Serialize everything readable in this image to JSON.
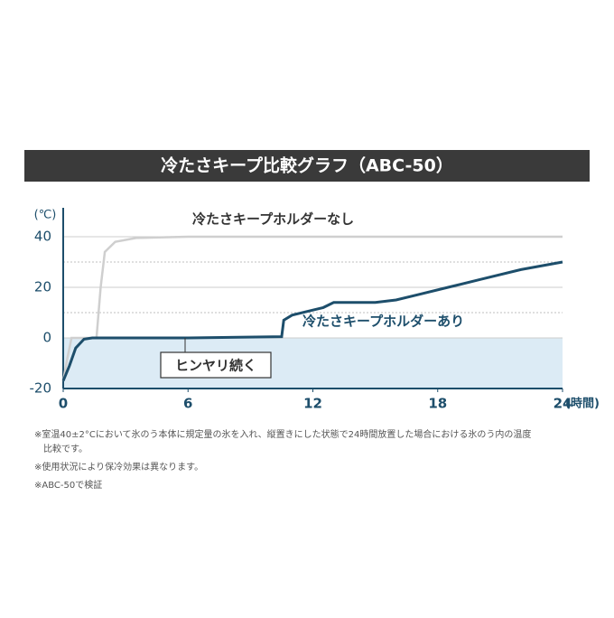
{
  "chart_data": {
    "type": "line",
    "title": "冷たさキープ比較グラフ（ABC-50）",
    "y_label": "(℃)",
    "x_label": "(時間)",
    "xlim": [
      0,
      24
    ],
    "xticks": [
      0,
      6,
      12,
      18,
      24
    ],
    "ylim": [
      -20,
      50
    ],
    "yticks": [
      40,
      20,
      0,
      -20
    ],
    "minor_gridlines": [
      30,
      10
    ],
    "grid": true,
    "series": [
      {
        "name": "冷たさキープホルダーなし",
        "color": "#cfcfcf",
        "x": [
          0,
          0.2,
          0.4,
          1.6,
          1.8,
          2.0,
          2.5,
          3.5,
          6,
          12,
          18,
          24
        ],
        "values": [
          -17,
          -8,
          0,
          0,
          20,
          34,
          38,
          39.5,
          40,
          40,
          40,
          40
        ]
      },
      {
        "name": "冷たさキープホルダーあり",
        "color": "#1d4e6b",
        "x": [
          0,
          0.3,
          0.6,
          1.0,
          1.4,
          6,
          10.5,
          10.6,
          11,
          12,
          12.5,
          13,
          15,
          16,
          17,
          18.5,
          20,
          22,
          24
        ],
        "values": [
          -17,
          -11,
          -4,
          -0.5,
          0,
          0,
          0.5,
          7,
          9,
          11,
          12,
          14,
          14,
          15,
          17,
          20,
          23,
          27,
          30
        ]
      }
    ],
    "annotation": "ヒンヤリ続く",
    "notes": [
      "※室温40±2°Cにおいて氷のう本体に規定量の氷を入れ、縦置きにした状態で24時間放置した場合における氷のう内の温度",
      "比較です。",
      "※使用状況により保冷効果は異なります。",
      "※ABC-50で検証"
    ]
  }
}
